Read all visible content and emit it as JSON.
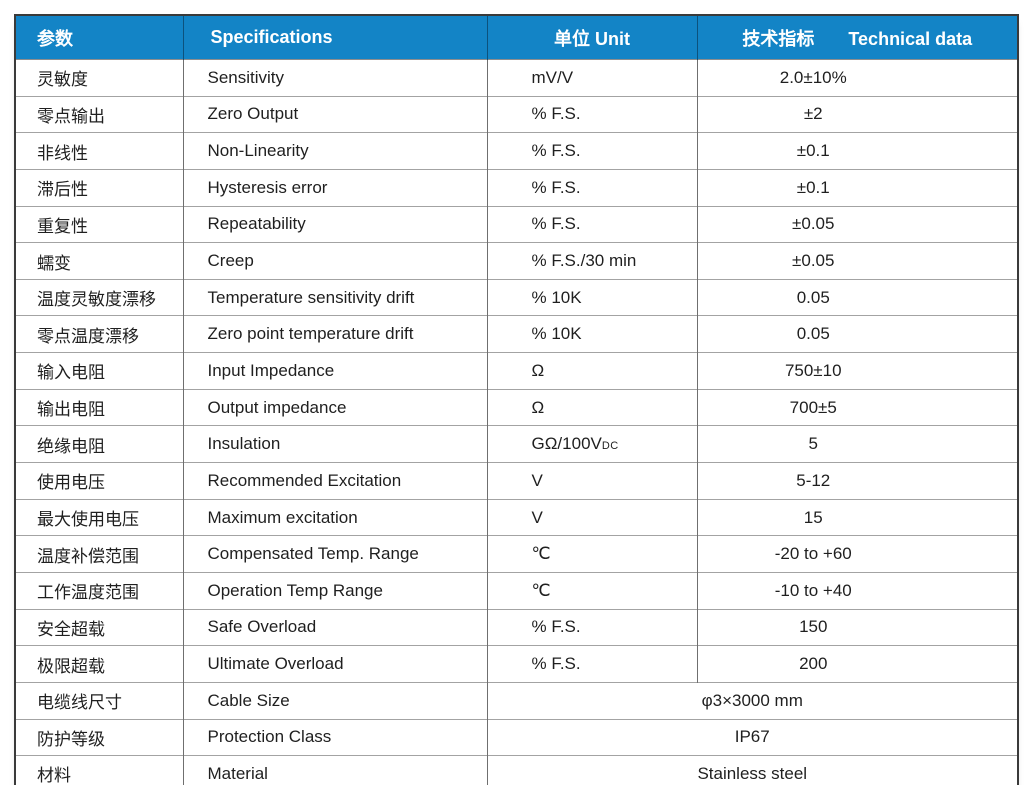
{
  "colors": {
    "header_bg": "#1384c6",
    "header_text": "#ffffff",
    "body_text": "#1f1f1f"
  },
  "table": {
    "header": {
      "param": "参数",
      "spec": "Specifications",
      "unit": "单位 Unit",
      "tech_zh": "技术指标",
      "tech_en": "Technical data"
    },
    "rows": [
      {
        "param": "灵敏度",
        "spec": "Sensitivity",
        "unit": "mV/V",
        "value": "2.0±10%"
      },
      {
        "param": "零点输出",
        "spec": "Zero Output",
        "unit": "% F.S.",
        "value": "±2"
      },
      {
        "param": "非线性",
        "spec": "Non-Linearity",
        "unit": "% F.S.",
        "value": "±0.1"
      },
      {
        "param": "滞后性",
        "spec": "Hysteresis error",
        "unit": "% F.S.",
        "value": "±0.1"
      },
      {
        "param": "重复性",
        "spec": "Repeatability",
        "unit": "% F.S.",
        "value": "±0.05"
      },
      {
        "param": "蠕变",
        "spec": "Creep",
        "unit": "% F.S./30 min",
        "value": "±0.05"
      },
      {
        "param": "温度灵敏度漂移",
        "spec": "Temperature sensitivity drift",
        "unit": "% 10K",
        "value": "0.05"
      },
      {
        "param": "零点温度漂移",
        "spec": "Zero point temperature drift",
        "unit": "% 10K",
        "value": "0.05"
      },
      {
        "param": "输入电阻",
        "spec": "Input Impedance",
        "unit": "Ω",
        "value": "750±10"
      },
      {
        "param": "输出电阻",
        "spec": "Output impedance",
        "unit": "Ω",
        "value": "700±5"
      },
      {
        "param": "绝缘电阻",
        "spec": "Insulation",
        "unit": "GΩ/100V",
        "unit_sub": "DC",
        "value": "5"
      },
      {
        "param": "使用电压",
        "spec": "Recommended Excitation",
        "unit": "V",
        "value": "5-12"
      },
      {
        "param": "最大使用电压",
        "spec": "Maximum excitation",
        "unit": "V",
        "value": "15"
      },
      {
        "param": "温度补偿范围",
        "spec": "Compensated Temp. Range",
        "unit": "℃",
        "value": "-20 to +60"
      },
      {
        "param": "工作温度范围",
        "spec": "Operation Temp Range",
        "unit": "℃",
        "value": "-10 to +40"
      },
      {
        "param": "安全超载",
        "spec": "Safe Overload",
        "unit": "% F.S.",
        "value": "150"
      },
      {
        "param": "极限超载",
        "spec": "Ultimate Overload",
        "unit": "% F.S.",
        "value": "200"
      },
      {
        "param": "电缆线尺寸",
        "spec": "Cable Size",
        "merged": true,
        "value": "φ3×3000 mm"
      },
      {
        "param": "防护等级",
        "spec": "Protection Class",
        "merged": true,
        "value": "IP67"
      },
      {
        "param": "材料",
        "spec": "Material",
        "merged": true,
        "value": "Stainless steel"
      }
    ]
  }
}
